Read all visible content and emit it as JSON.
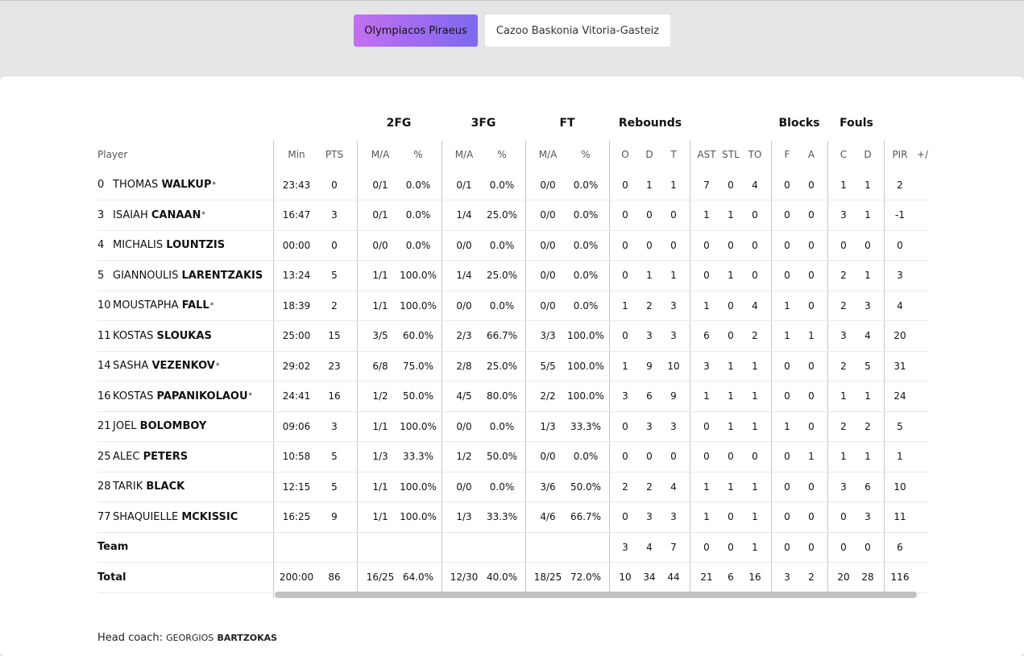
{
  "tabs": [
    "Olympiacos Piraeus",
    "Cazoo Baskonia Vitoria-Gasteiz"
  ],
  "group_headers": {
    "fg2": "2FG",
    "fg3": "3FG",
    "ft": "FT",
    "rebounds": "Rebounds",
    "blocks": "Blocks",
    "fouls": "Fouls"
  },
  "columns": [
    "Player",
    "Min",
    "PTS",
    "M/A",
    "%",
    "M/A",
    "%",
    "M/A",
    "%",
    "O",
    "D",
    "T",
    "AST",
    "STL",
    "TO",
    "F",
    "A",
    "C",
    "D",
    "PIR",
    "+/"
  ],
  "players": [
    {
      "num": "0",
      "first": "THOMAS",
      "last": "WALKUP",
      "star": true,
      "stats": [
        "23:43",
        "0",
        "0/1",
        "0.0%",
        "0/1",
        "0.0%",
        "0/0",
        "0.0%",
        "0",
        "1",
        "1",
        "7",
        "0",
        "4",
        "0",
        "0",
        "1",
        "1",
        "2"
      ]
    },
    {
      "num": "3",
      "first": "ISAIAH",
      "last": "CANAAN",
      "star": true,
      "stats": [
        "16:47",
        "3",
        "0/1",
        "0.0%",
        "1/4",
        "25.0%",
        "0/0",
        "0.0%",
        "0",
        "0",
        "0",
        "1",
        "1",
        "0",
        "0",
        "0",
        "3",
        "1",
        "-1"
      ]
    },
    {
      "num": "4",
      "first": "MICHALIS",
      "last": "LOUNTZIS",
      "star": false,
      "stats": [
        "00:00",
        "0",
        "0/0",
        "0.0%",
        "0/0",
        "0.0%",
        "0/0",
        "0.0%",
        "0",
        "0",
        "0",
        "0",
        "0",
        "0",
        "0",
        "0",
        "0",
        "0",
        "0"
      ]
    },
    {
      "num": "5",
      "first": "GIANNOULIS",
      "last": "LARENTZAKIS",
      "star": false,
      "stats": [
        "13:24",
        "5",
        "1/1",
        "100.0%",
        "1/4",
        "25.0%",
        "0/0",
        "0.0%",
        "0",
        "1",
        "1",
        "0",
        "1",
        "0",
        "0",
        "0",
        "2",
        "1",
        "3"
      ]
    },
    {
      "num": "10",
      "first": "MOUSTAPHA",
      "last": "FALL",
      "star": true,
      "stats": [
        "18:39",
        "2",
        "1/1",
        "100.0%",
        "0/0",
        "0.0%",
        "0/0",
        "0.0%",
        "1",
        "2",
        "3",
        "1",
        "0",
        "4",
        "1",
        "0",
        "2",
        "3",
        "4"
      ]
    },
    {
      "num": "11",
      "first": "KOSTAS",
      "last": "SLOUKAS",
      "star": false,
      "stats": [
        "25:00",
        "15",
        "3/5",
        "60.0%",
        "2/3",
        "66.7%",
        "3/3",
        "100.0%",
        "0",
        "3",
        "3",
        "6",
        "0",
        "2",
        "1",
        "1",
        "3",
        "4",
        "20"
      ]
    },
    {
      "num": "14",
      "first": "SASHA",
      "last": "VEZENKOV",
      "star": true,
      "stats": [
        "29:02",
        "23",
        "6/8",
        "75.0%",
        "2/8",
        "25.0%",
        "5/5",
        "100.0%",
        "1",
        "9",
        "10",
        "3",
        "1",
        "1",
        "0",
        "0",
        "2",
        "5",
        "31"
      ]
    },
    {
      "num": "16",
      "first": "KOSTAS",
      "last": "PAPANIKOLAOU",
      "star": true,
      "stats": [
        "24:41",
        "16",
        "1/2",
        "50.0%",
        "4/5",
        "80.0%",
        "2/2",
        "100.0%",
        "3",
        "6",
        "9",
        "1",
        "1",
        "1",
        "0",
        "0",
        "1",
        "1",
        "24"
      ]
    },
    {
      "num": "21",
      "first": "JOEL",
      "last": "BOLOMBOY",
      "star": false,
      "stats": [
        "09:06",
        "3",
        "1/1",
        "100.0%",
        "0/0",
        "0.0%",
        "1/3",
        "33.3%",
        "0",
        "3",
        "3",
        "0",
        "1",
        "1",
        "1",
        "0",
        "2",
        "2",
        "5"
      ]
    },
    {
      "num": "25",
      "first": "ALEC",
      "last": "PETERS",
      "star": false,
      "stats": [
        "10:58",
        "5",
        "1/3",
        "33.3%",
        "1/2",
        "50.0%",
        "0/0",
        "0.0%",
        "0",
        "0",
        "0",
        "0",
        "0",
        "0",
        "0",
        "1",
        "1",
        "1",
        "1"
      ]
    },
    {
      "num": "28",
      "first": "TARIK",
      "last": "BLACK",
      "star": false,
      "stats": [
        "12:15",
        "5",
        "1/1",
        "100.0%",
        "0/0",
        "0.0%",
        "3/6",
        "50.0%",
        "2",
        "2",
        "4",
        "1",
        "1",
        "1",
        "0",
        "0",
        "3",
        "6",
        "10"
      ]
    },
    {
      "num": "77",
      "first": "SHAQUIELLE",
      "last": "MCKISSIC",
      "star": false,
      "stats": [
        "16:25",
        "9",
        "1/1",
        "100.0%",
        "1/3",
        "33.3%",
        "4/6",
        "66.7%",
        "0",
        "3",
        "3",
        "1",
        "0",
        "1",
        "0",
        "0",
        "0",
        "3",
        "11"
      ]
    }
  ],
  "team_row": {
    "label": "Team",
    "stats": [
      "",
      "",
      "",
      "",
      "",
      "",
      "",
      "",
      "3",
      "4",
      "7",
      "0",
      "0",
      "1",
      "0",
      "0",
      "0",
      "0",
      "6"
    ]
  },
  "total_row": {
    "label": "Total",
    "stats": [
      "200:00",
      "86",
      "16/25",
      "64.0%",
      "12/30",
      "40.0%",
      "18/25",
      "72.0%",
      "10",
      "34",
      "44",
      "21",
      "6",
      "16",
      "3",
      "2",
      "20",
      "28",
      "116"
    ]
  },
  "coach": {
    "label": "Head coach:",
    "first": "GEORGIOS",
    "last": "BARTZOKAS"
  }
}
